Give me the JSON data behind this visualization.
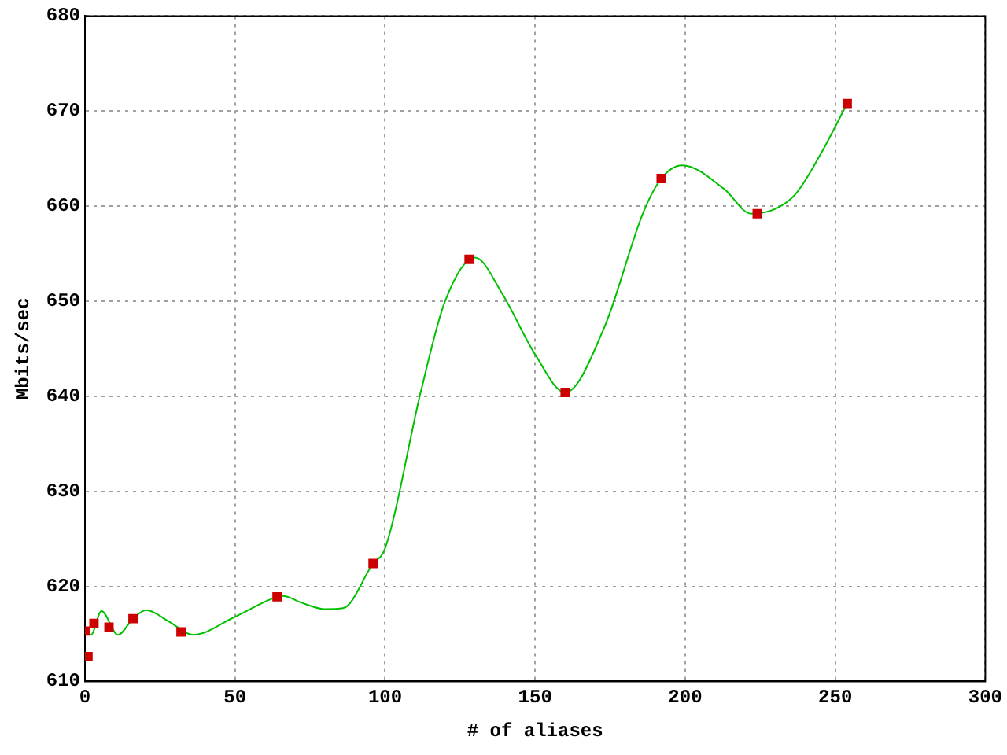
{
  "chart_data": {
    "type": "scatter",
    "xlabel": "# of aliases",
    "ylabel": "Mbits/sec",
    "xlim": [
      0,
      300
    ],
    "xticks": [
      0,
      50,
      100,
      150,
      200,
      250,
      300
    ],
    "ylim": [
      610,
      680
    ],
    "yticks": [
      610,
      620,
      630,
      640,
      650,
      660,
      670,
      680
    ],
    "grid": true,
    "legend": false,
    "series": [
      {
        "type": "line",
        "marker": "none",
        "color": "#00c000",
        "x": [
          0,
          2,
          5.5,
          11,
          16,
          20.4,
          28,
          36,
          50,
          64,
          66,
          72,
          80,
          86,
          96,
          100,
          112,
          120,
          130,
          139,
          150,
          160,
          173,
          186,
          192,
          199,
          213,
          222,
          236,
          245,
          254
        ],
        "values": [
          615.3,
          614.9,
          617.4,
          614.9,
          616.6,
          617.5,
          616.3,
          614.9,
          616.8,
          618.9,
          619.0,
          618.3,
          617.6,
          617.7,
          622.4,
          624.0,
          640.6,
          650.0,
          654.6,
          650.8,
          644.4,
          640.4,
          647.2,
          659.3,
          662.9,
          664.3,
          661.8,
          659.2,
          661.0,
          665.4,
          670.8
        ]
      },
      {
        "type": "scatter",
        "marker": "square",
        "color": "#cc0000",
        "x": [
          0,
          1,
          3,
          8,
          16,
          32,
          64,
          96,
          128,
          160,
          192,
          224,
          254
        ],
        "values": [
          615.3,
          612.6,
          616.1,
          615.7,
          616.6,
          615.2,
          618.9,
          622.4,
          654.4,
          640.4,
          662.9,
          659.2,
          670.8
        ]
      }
    ]
  }
}
